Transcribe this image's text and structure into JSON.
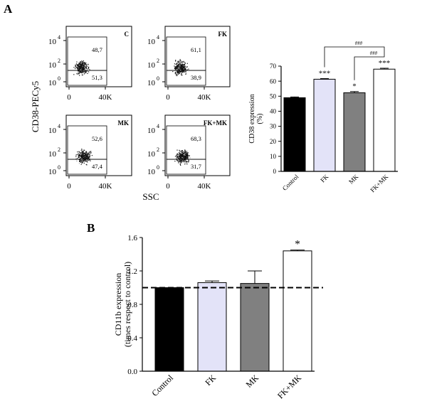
{
  "panels": {
    "a_label": "A",
    "b_label": "B"
  },
  "flow": {
    "y_label": "CD38-PECy5",
    "x_label": "SSC",
    "x_tick_labels": [
      "0",
      "40K"
    ],
    "y_tick_bases": [
      "10",
      "10",
      "10"
    ],
    "y_tick_exps": [
      "4",
      "2",
      "0"
    ],
    "plots": [
      {
        "title": "C",
        "upper_pct": "48,7",
        "lower_pct": "51,3"
      },
      {
        "title": "FK",
        "upper_pct": "61,1",
        "lower_pct": "38,9"
      },
      {
        "title": "MK",
        "upper_pct": "52,6",
        "lower_pct": "47,4"
      },
      {
        "title": "FK+MK",
        "upper_pct": "68,3",
        "lower_pct": "31,7"
      }
    ]
  },
  "chart_data": [
    {
      "type": "bar",
      "title": "",
      "categories": [
        "Control",
        "FK",
        "MK",
        "FK+MK"
      ],
      "values": [
        49,
        61.3,
        52.3,
        68
      ],
      "errors": [
        0.5,
        0.4,
        0.8,
        0.6
      ],
      "colors": [
        "#000000",
        "#e3e3f8",
        "#808080",
        "#ffffff"
      ],
      "xlabel": "",
      "ylabel": "CD38 expression\n(%)",
      "ylim": [
        0,
        70
      ],
      "yticks": [
        "0",
        "10",
        "20",
        "30",
        "40",
        "50",
        "60",
        "70"
      ],
      "significance": [
        "",
        "***",
        "*",
        "***"
      ],
      "brackets": [
        {
          "from": "FK",
          "to": "FK+MK",
          "label": "###"
        },
        {
          "from": "MK",
          "to": "FK+MK",
          "label": "###"
        }
      ]
    },
    {
      "type": "bar",
      "title": "",
      "categories": [
        "Control",
        "FK",
        "MK",
        "FK+MK"
      ],
      "values": [
        1.0,
        1.06,
        1.05,
        1.44
      ],
      "errors": [
        0,
        0.02,
        0.15,
        0.01
      ],
      "colors": [
        "#000000",
        "#e3e3f8",
        "#808080",
        "#ffffff"
      ],
      "xlabel": "",
      "ylabel": "CD11b expression\n(times respect to control)",
      "ylim": [
        0,
        1.6
      ],
      "yticks": [
        "0.0",
        "0.4",
        "0.8",
        "1.2",
        "1.6"
      ],
      "significance": [
        "",
        "",
        "",
        "*"
      ],
      "reference_line": 1.0
    }
  ]
}
